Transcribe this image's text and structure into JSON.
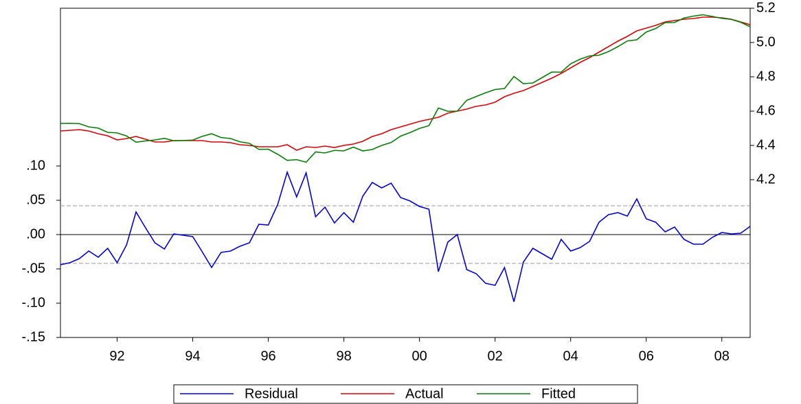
{
  "chart_data": {
    "type": "line",
    "categories": [
      null,
      null,
      null,
      null,
      null,
      null,
      "92",
      null,
      null,
      null,
      null,
      null,
      null,
      null,
      "94",
      null,
      null,
      null,
      null,
      null,
      null,
      null,
      "96",
      null,
      null,
      null,
      null,
      null,
      null,
      null,
      "98",
      null,
      null,
      null,
      null,
      null,
      null,
      null,
      "00",
      null,
      null,
      null,
      null,
      null,
      null,
      null,
      "02",
      null,
      null,
      null,
      null,
      null,
      null,
      null,
      "04",
      null,
      null,
      null,
      null,
      null,
      null,
      null,
      "06",
      null,
      null,
      null,
      null,
      null,
      null,
      null,
      "08",
      null,
      null,
      null
    ],
    "ylim": [
      -0.15,
      0.33
    ],
    "yticks": [
      {
        "value": 0.1,
        "label": ".10"
      },
      {
        "value": 0.05,
        "label": ".05"
      },
      {
        "value": 0,
        "label": ".00"
      },
      {
        "value": -0.05,
        "label": "-.05"
      },
      {
        "value": -0.1,
        "label": "-.10"
      },
      {
        "value": -0.15,
        "label": "-.15"
      }
    ],
    "y2lim": [
      3.28,
      5.2
    ],
    "y2ticks": [
      5.2,
      {
        "value": 5.0,
        "label": "5.0"
      },
      4.8,
      4.6,
      4.4,
      4.2
    ],
    "residual_band": [
      -0.042,
      0.042
    ],
    "legend": "bottom",
    "series": [
      {
        "name": "Residual",
        "color": "#0000e0",
        "axis": "y",
        "values": [
          -0.044,
          -0.041,
          -0.035,
          -0.024,
          -0.033,
          -0.02,
          -0.041,
          -0.015,
          0.033,
          0.01,
          -0.012,
          -0.021,
          0.001,
          -0.001,
          -0.003,
          -0.025,
          -0.048,
          -0.026,
          -0.024,
          -0.017,
          -0.012,
          0.015,
          0.014,
          0.044,
          0.091,
          0.055,
          0.09,
          0.026,
          0.04,
          0.017,
          0.032,
          0.018,
          0.056,
          0.076,
          0.068,
          0.075,
          0.054,
          0.049,
          0.041,
          0.037,
          -0.054,
          -0.011,
          0,
          -0.051,
          -0.057,
          -0.071,
          -0.074,
          -0.048,
          -0.098,
          -0.04,
          -0.02,
          -0.028,
          -0.036,
          -0.007,
          -0.024,
          -0.019,
          -0.01,
          0.018,
          0.029,
          0.032,
          0.027,
          0.052,
          0.023,
          0.018,
          0.004,
          0.011,
          -0.007,
          -0.014,
          -0.014,
          -0.004,
          0.003,
          0.001,
          0.002,
          0.012
        ]
      },
      {
        "name": "Actual",
        "color": "#e00000",
        "axis": "y2",
        "values": [
          4.484,
          4.488,
          4.492,
          4.484,
          4.468,
          4.456,
          4.432,
          4.44,
          4.452,
          4.436,
          4.42,
          4.42,
          4.428,
          4.428,
          4.428,
          4.428,
          4.42,
          4.42,
          4.416,
          4.404,
          4.4,
          4.392,
          4.392,
          4.392,
          4.404,
          4.372,
          4.392,
          4.388,
          4.396,
          4.388,
          4.4,
          4.408,
          4.424,
          4.452,
          4.468,
          4.492,
          4.508,
          4.524,
          4.54,
          4.552,
          4.564,
          4.588,
          4.6,
          4.612,
          4.628,
          4.636,
          4.652,
          4.684,
          4.704,
          4.72,
          4.744,
          4.768,
          4.792,
          4.82,
          4.852,
          4.884,
          4.912,
          4.944,
          4.976,
          5.008,
          5.036,
          5.068,
          5.084,
          5.1,
          5.12,
          5.128,
          5.136,
          5.14,
          5.148,
          5.148,
          5.144,
          5.136,
          5.12,
          5.104
        ]
      },
      {
        "name": "Fitted",
        "color": "#008000",
        "axis": "y2",
        "values": [
          4.528,
          4.529,
          4.527,
          4.508,
          4.501,
          4.476,
          4.473,
          4.455,
          4.419,
          4.426,
          4.432,
          4.441,
          4.427,
          4.429,
          4.431,
          4.453,
          4.468,
          4.446,
          4.44,
          4.421,
          4.412,
          4.377,
          4.378,
          4.348,
          4.313,
          4.317,
          4.302,
          4.362,
          4.356,
          4.371,
          4.368,
          4.39,
          4.368,
          4.376,
          4.4,
          4.417,
          4.454,
          4.475,
          4.499,
          4.515,
          4.618,
          4.599,
          4.6,
          4.663,
          4.685,
          4.707,
          4.726,
          4.732,
          4.802,
          4.76,
          4.764,
          4.796,
          4.828,
          4.827,
          4.876,
          4.903,
          4.922,
          4.926,
          4.947,
          4.976,
          5.009,
          5.016,
          5.061,
          5.082,
          5.116,
          5.117,
          5.143,
          5.154,
          5.162,
          5.152,
          5.141,
          5.135,
          5.118,
          5.092
        ]
      }
    ]
  }
}
